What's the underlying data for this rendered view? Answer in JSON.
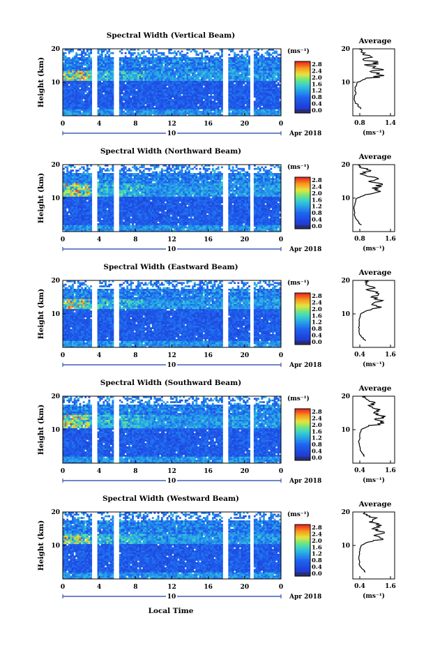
{
  "page": {
    "xlabel": "Local Time",
    "date_label": "Apr 2018",
    "date_day": "10",
    "colorbar_unit": "(ms⁻¹)",
    "colorbar_ticks": [
      "2.8",
      "2.4",
      "2.0",
      "1.6",
      "1.2",
      "0.8",
      "0.4",
      "0.0"
    ],
    "avg_title": "Average",
    "avg_xlabel": "(ms⁻¹)",
    "ylabel": "Height (km)"
  },
  "chart_data": [
    {
      "type": "heatmap",
      "title": "Spectral Width (Vertical Beam)",
      "xlabel": "Local Time",
      "ylabel": "Height (km)",
      "xlim": [
        0,
        24
      ],
      "ylim": [
        0,
        20
      ],
      "xticks": [
        "0",
        "4",
        "8",
        "12",
        "16",
        "20",
        "0"
      ],
      "yticks": [
        "10",
        "20"
      ],
      "colorbar": {
        "unit": "ms-1",
        "range": [
          0,
          2.8
        ],
        "ticks": [
          "2.8",
          "2.4",
          "2.0",
          "1.6",
          "1.2",
          "0.8",
          "0.4",
          "0.0"
        ]
      },
      "data_gaps_hours": [
        [
          3.2,
          3.7
        ],
        [
          5.6,
          6.1
        ],
        [
          17.6,
          18.2
        ],
        [
          20.6,
          21.0
        ]
      ],
      "high_width_band_km": [
        11,
        14
      ],
      "average_profile": {
        "title": "Average",
        "xlabel": "(ms⁻¹)",
        "xticks": [
          "0.8",
          "1.4"
        ],
        "xlim": [
          0.6,
          1.6
        ],
        "yticks": [
          "10",
          "20"
        ],
        "height_km": [
          2,
          3,
          4,
          6,
          8,
          10,
          11,
          12,
          13,
          14,
          15,
          16,
          17,
          18,
          19,
          20
        ],
        "values": [
          0.8,
          0.72,
          0.66,
          0.64,
          0.66,
          0.7,
          0.9,
          1.35,
          1.05,
          1.25,
          0.95,
          1.2,
          0.85,
          1.0,
          0.8,
          0.75
        ]
      }
    },
    {
      "type": "heatmap",
      "title": "Spectral Width (Northward Beam)",
      "xlabel": "Local Time",
      "ylabel": "Height (km)",
      "xlim": [
        0,
        24
      ],
      "ylim": [
        0,
        20
      ],
      "xticks": [
        "0",
        "4",
        "8",
        "12",
        "16",
        "20",
        "0"
      ],
      "yticks": [
        "10",
        "20"
      ],
      "colorbar": {
        "unit": "ms-1",
        "range": [
          0,
          2.8
        ],
        "ticks": [
          "2.8",
          "2.4",
          "2.0",
          "1.6",
          "1.2",
          "0.8",
          "0.4",
          "0.0"
        ]
      },
      "data_gaps_hours": [
        [
          3.2,
          3.7
        ],
        [
          5.6,
          6.1
        ],
        [
          17.6,
          18.2
        ],
        [
          20.6,
          21.0
        ]
      ],
      "high_width_band_km": [
        11,
        15
      ],
      "average_profile": {
        "title": "Average",
        "xlabel": "(ms⁻¹)",
        "xticks": [
          "0.8",
          "1.6"
        ],
        "xlim": [
          0.6,
          1.8
        ],
        "yticks": [
          "10",
          "20"
        ],
        "height_km": [
          2,
          3,
          4,
          6,
          8,
          10,
          11,
          12,
          13,
          14,
          15,
          16,
          17,
          18,
          19,
          20
        ],
        "values": [
          0.85,
          0.75,
          0.68,
          0.65,
          0.66,
          0.72,
          0.95,
          1.4,
          1.15,
          1.45,
          1.05,
          1.3,
          0.9,
          1.1,
          0.85,
          0.8
        ]
      }
    },
    {
      "type": "heatmap",
      "title": "Spectral Width (Eastward Beam)",
      "xlabel": "Local Time",
      "ylabel": "Height (km)",
      "xlim": [
        0,
        24
      ],
      "ylim": [
        0,
        20
      ],
      "xticks": [
        "0",
        "4",
        "8",
        "12",
        "16",
        "20",
        "0"
      ],
      "yticks": [
        "10",
        "20"
      ],
      "colorbar": {
        "unit": "ms-1",
        "range": [
          0,
          2.8
        ],
        "ticks": [
          "2.8",
          "2.4",
          "2.0",
          "1.6",
          "1.2",
          "0.8",
          "0.4",
          "0.0"
        ]
      },
      "data_gaps_hours": [
        [
          3.2,
          3.7
        ],
        [
          5.6,
          6.1
        ],
        [
          17.6,
          18.2
        ],
        [
          20.6,
          21.0
        ]
      ],
      "high_width_band_km": [
        12,
        15
      ],
      "average_profile": {
        "title": "Average",
        "xlabel": "(ms⁻¹)",
        "xticks": [
          "0.4",
          "1.6"
        ],
        "xlim": [
          0.2,
          1.8
        ],
        "yticks": [
          "10",
          "20"
        ],
        "height_km": [
          2,
          3,
          4,
          6,
          8,
          10,
          11,
          12,
          13,
          14,
          15,
          16,
          17,
          18,
          19,
          20
        ],
        "values": [
          0.7,
          0.55,
          0.45,
          0.42,
          0.44,
          0.5,
          0.75,
          1.3,
          0.95,
          1.35,
          0.9,
          1.2,
          0.8,
          1.0,
          0.7,
          0.65
        ]
      }
    },
    {
      "type": "heatmap",
      "title": "Spectral Width (Southward Beam)",
      "xlabel": "Local Time",
      "ylabel": "Height (km)",
      "xlim": [
        0,
        24
      ],
      "ylim": [
        0,
        20
      ],
      "xticks": [
        "0",
        "4",
        "8",
        "12",
        "16",
        "20",
        "0"
      ],
      "yticks": [
        "10",
        "20"
      ],
      "colorbar": {
        "unit": "ms-1",
        "range": [
          0,
          2.8
        ],
        "ticks": [
          "2.8",
          "2.4",
          "2.0",
          "1.6",
          "1.2",
          "0.8",
          "0.4",
          "0.0"
        ]
      },
      "data_gaps_hours": [
        [
          3.2,
          3.7
        ],
        [
          5.6,
          6.1
        ],
        [
          17.6,
          18.2
        ],
        [
          20.6,
          21.0
        ]
      ],
      "high_width_band_km": [
        11,
        15
      ],
      "average_profile": {
        "title": "Average",
        "xlabel": "(ms⁻¹)",
        "xticks": [
          "0.4",
          "1.6"
        ],
        "xlim": [
          0.2,
          1.8
        ],
        "yticks": [
          "10",
          "20"
        ],
        "height_km": [
          2,
          3,
          4,
          6,
          8,
          10,
          11,
          12,
          13,
          14,
          15,
          16,
          17,
          18,
          19,
          20
        ],
        "values": [
          0.65,
          0.55,
          0.48,
          0.44,
          0.46,
          0.52,
          0.8,
          1.4,
          1.05,
          1.45,
          1.0,
          1.25,
          0.85,
          1.05,
          0.75,
          0.7
        ]
      }
    },
    {
      "type": "heatmap",
      "title": "Spectral Width (Westward Beam)",
      "xlabel": "Local Time",
      "ylabel": "Height (km)",
      "xlim": [
        0,
        24
      ],
      "ylim": [
        0,
        20
      ],
      "xticks": [
        "0",
        "4",
        "8",
        "12",
        "16",
        "20",
        "0"
      ],
      "yticks": [
        "10",
        "20"
      ],
      "colorbar": {
        "unit": "ms-1",
        "range": [
          0,
          2.8
        ],
        "ticks": [
          "2.8",
          "2.4",
          "2.0",
          "1.6",
          "1.2",
          "0.8",
          "0.4",
          "0.0"
        ]
      },
      "data_gaps_hours": [
        [
          3.2,
          3.7
        ],
        [
          5.6,
          6.1
        ],
        [
          17.6,
          18.2
        ],
        [
          20.6,
          21.0
        ]
      ],
      "high_width_band_km": [
        11,
        14
      ],
      "average_profile": {
        "title": "Average",
        "xlabel": "(ms⁻¹)",
        "xticks": [
          "0.4",
          "1.6"
        ],
        "xlim": [
          0.2,
          1.8
        ],
        "yticks": [
          "10",
          "20"
        ],
        "height_km": [
          2,
          3,
          4,
          6,
          8,
          10,
          11,
          12,
          13,
          14,
          15,
          16,
          17,
          18,
          19,
          20
        ],
        "values": [
          0.68,
          0.56,
          0.46,
          0.43,
          0.45,
          0.52,
          0.78,
          1.35,
          1.0,
          1.4,
          0.95,
          1.3,
          0.82,
          1.05,
          0.72,
          0.68
        ]
      }
    }
  ]
}
